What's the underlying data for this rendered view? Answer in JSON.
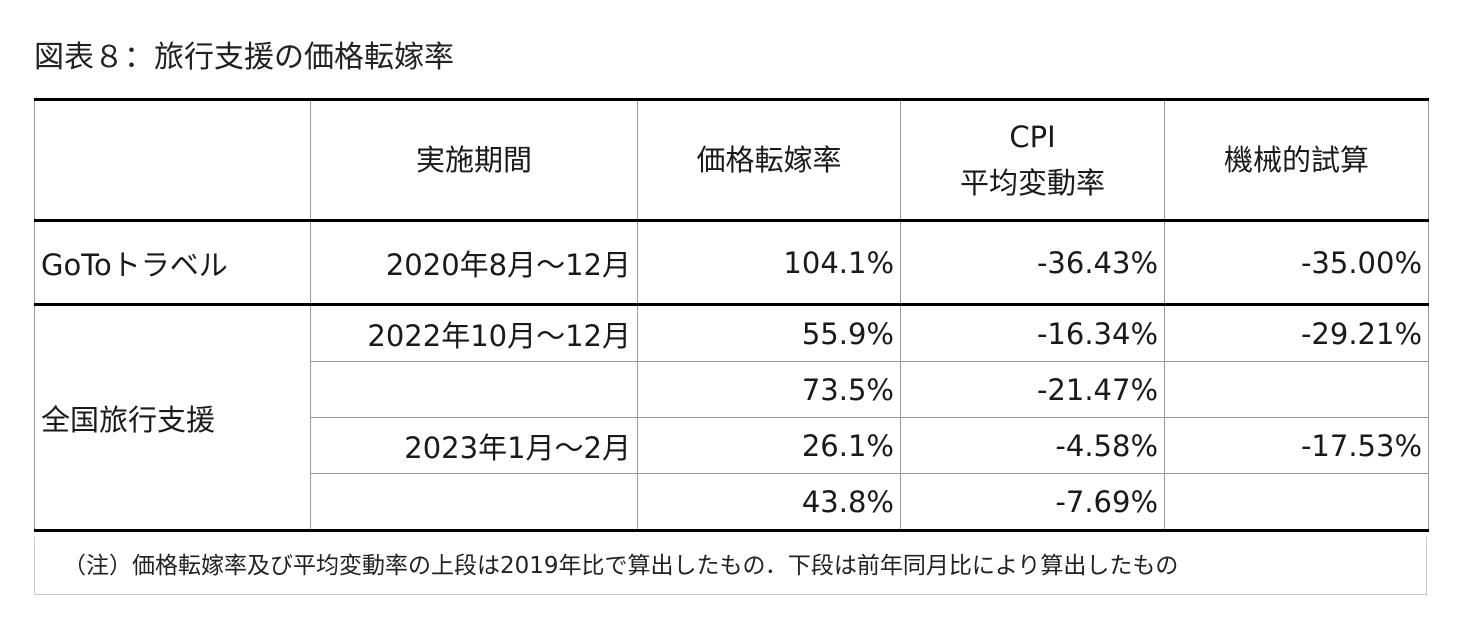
{
  "title": "図表８：旅行支援の価格転嫁率",
  "table": {
    "headers": [
      "",
      "実施期間",
      "価格転嫁率",
      "CPI",
      "平均変動率",
      "機械的試算"
    ],
    "goto": {
      "label": "GoToトラベル",
      "period": "2020年8月～12月",
      "rate": "104.1%",
      "cpi": "-36.43%",
      "calc": "-35.00%"
    },
    "zenkoku": {
      "label": "全国旅行支援",
      "rows": [
        {
          "period": "2022年10月～12月",
          "rate": "55.9%",
          "cpi": "-16.34%",
          "calc": "-29.21%"
        },
        {
          "period": "",
          "rate": "73.5%",
          "cpi": "-21.47%",
          "calc": ""
        },
        {
          "period": "2023年1月～2月",
          "rate": "26.1%",
          "cpi": "-4.58%",
          "calc": "-17.53%"
        },
        {
          "period": "",
          "rate": "43.8%",
          "cpi": "-7.69%",
          "calc": ""
        }
      ]
    }
  },
  "note": "（注）価格転嫁率及び平均変動率の上段は2019年比で算出したもの．下段は前年同月比により算出したもの"
}
